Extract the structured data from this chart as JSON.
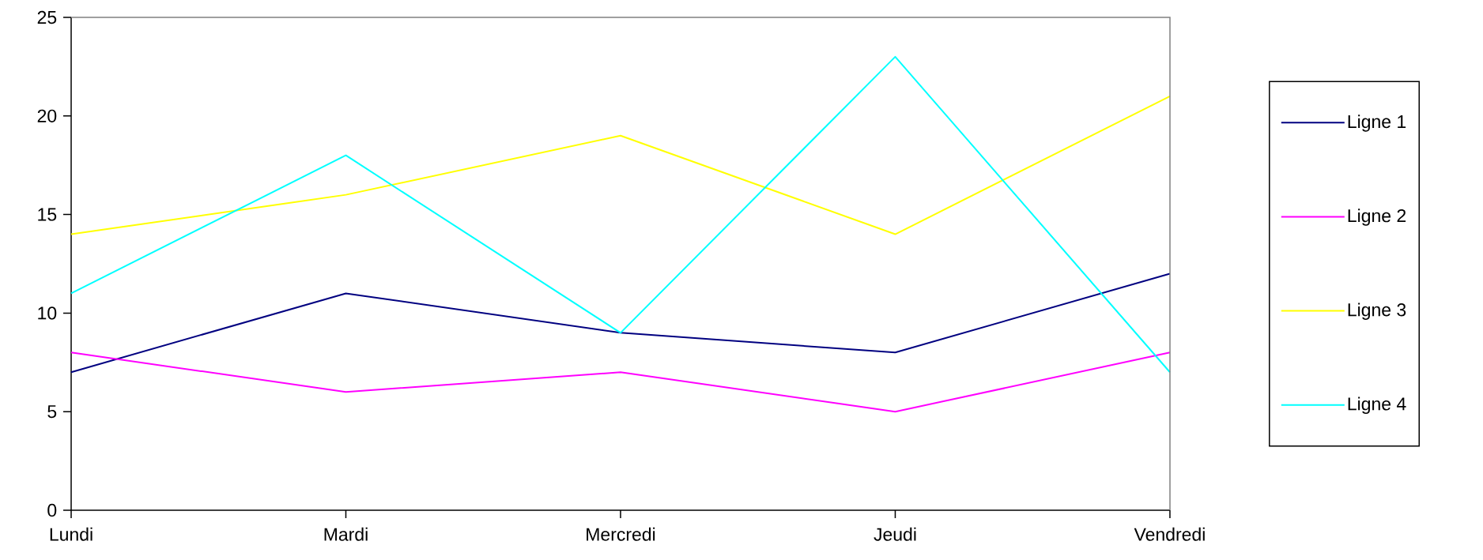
{
  "chart_data": {
    "type": "line",
    "categories": [
      "Lundi",
      "Mardi",
      "Mercredi",
      "Jeudi",
      "Vendredi"
    ],
    "series": [
      {
        "name": "Ligne 1",
        "color": "#000080",
        "values": [
          7,
          11,
          9,
          8,
          12
        ]
      },
      {
        "name": "Ligne 2",
        "color": "#ff00ff",
        "values": [
          8,
          6,
          7,
          5,
          8
        ]
      },
      {
        "name": "Ligne 3",
        "color": "#ffff00",
        "values": [
          14,
          16,
          19,
          14,
          21
        ]
      },
      {
        "name": "Ligne 4",
        "color": "#00ffff",
        "values": [
          11,
          18,
          9,
          23,
          7
        ]
      }
    ],
    "ylim": [
      0,
      25
    ],
    "yticks": [
      0,
      5,
      10,
      15,
      20,
      25
    ],
    "legend": "right",
    "grid": false,
    "marker": "none",
    "line_style": "solid"
  }
}
